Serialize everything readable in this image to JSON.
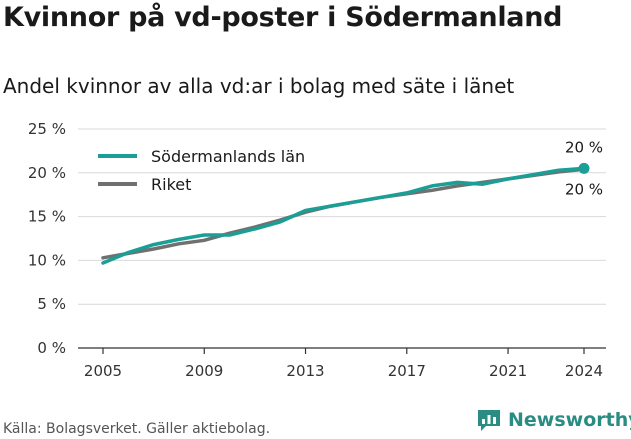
{
  "title": "Kvinnor på vd-poster i Södermanland",
  "subtitle": "Andel kvinnor av alla vd:ar i bolag med säte i länet",
  "source": "Källa: Bolagsverket. Gäller aktiebolag.",
  "brand": "Newsworthy",
  "chart_data": {
    "type": "line",
    "x": [
      2005,
      2006,
      2007,
      2008,
      2009,
      2010,
      2011,
      2012,
      2013,
      2014,
      2015,
      2016,
      2017,
      2018,
      2019,
      2020,
      2021,
      2022,
      2023,
      2024
    ],
    "xticks": [
      2005,
      2009,
      2013,
      2017,
      2021,
      2024
    ],
    "xtick_labels": [
      "2005",
      "2009",
      "2013",
      "2017",
      "2021",
      "2024"
    ],
    "yticks": [
      0,
      5,
      10,
      15,
      20,
      25
    ],
    "ytick_labels": [
      "0 %",
      "5 %",
      "10 %",
      "15 %",
      "20 %",
      "25 %"
    ],
    "ylim": [
      0,
      25
    ],
    "grid": true,
    "legend_position": "top-left",
    "series": [
      {
        "name": "Riket",
        "color": "#707070",
        "values": [
          10.3,
          10.8,
          11.3,
          11.9,
          12.3,
          13.1,
          13.8,
          14.6,
          15.5,
          16.2,
          16.7,
          17.2,
          17.6,
          18.0,
          18.5,
          18.9,
          19.3,
          19.7,
          20.1,
          20.4
        ],
        "end_label": "20 %"
      },
      {
        "name": "Södermanlands län",
        "color": "#1a9e96",
        "values": [
          9.7,
          10.9,
          11.8,
          12.4,
          12.9,
          12.9,
          13.6,
          14.4,
          15.7,
          16.2,
          16.7,
          17.2,
          17.7,
          18.5,
          18.9,
          18.7,
          19.3,
          19.8,
          20.3,
          20.5
        ],
        "end_label": "20 %"
      }
    ]
  }
}
